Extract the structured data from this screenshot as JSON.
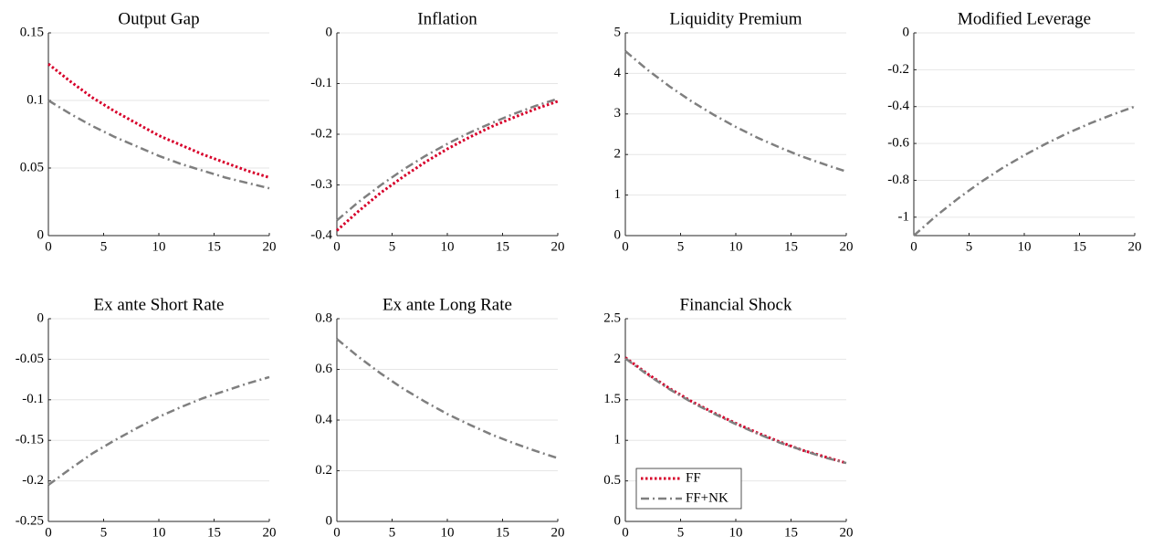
{
  "chart_data": [
    {
      "type": "line",
      "title": "Output Gap",
      "x": [
        0,
        2,
        4,
        6,
        8,
        10,
        12,
        14,
        16,
        18,
        20
      ],
      "xlim": [
        0,
        20
      ],
      "xticks": [
        0,
        5,
        10,
        15,
        20
      ],
      "ylim": [
        0,
        0.15
      ],
      "yticks": [
        0,
        0.05,
        0.1,
        0.15
      ],
      "grid": true,
      "series": [
        {
          "color": "#d7002a",
          "dash": "dotted",
          "values": [
            0.127,
            0.114,
            0.102,
            0.092,
            0.083,
            0.074,
            0.067,
            0.06,
            0.054,
            0.048,
            0.043
          ]
        },
        {
          "color": "#7f7f7f",
          "dash": "dashdot",
          "values": [
            0.1,
            0.09,
            0.081,
            0.073,
            0.066,
            0.059,
            0.053,
            0.048,
            0.043,
            0.039,
            0.035
          ]
        }
      ]
    },
    {
      "type": "line",
      "title": "Inflation",
      "x": [
        0,
        2,
        4,
        6,
        8,
        10,
        12,
        14,
        16,
        18,
        20
      ],
      "xlim": [
        0,
        20
      ],
      "xticks": [
        0,
        5,
        10,
        15,
        20
      ],
      "ylim": [
        -0.4,
        0
      ],
      "yticks": [
        -0.4,
        -0.3,
        -0.2,
        -0.1,
        0
      ],
      "grid": true,
      "series": [
        {
          "color": "#d7002a",
          "dash": "dotted",
          "values": [
            -0.39,
            -0.351,
            -0.315,
            -0.284,
            -0.255,
            -0.229,
            -0.206,
            -0.185,
            -0.167,
            -0.15,
            -0.135
          ]
        },
        {
          "color": "#7f7f7f",
          "dash": "dashdot",
          "values": [
            -0.37,
            -0.333,
            -0.3,
            -0.27,
            -0.243,
            -0.219,
            -0.197,
            -0.178,
            -0.16,
            -0.144,
            -0.13
          ]
        }
      ]
    },
    {
      "type": "line",
      "title": "Liquidity Premium",
      "x": [
        0,
        2,
        4,
        6,
        8,
        10,
        12,
        14,
        16,
        18,
        20
      ],
      "xlim": [
        0,
        20
      ],
      "xticks": [
        0,
        5,
        10,
        15,
        20
      ],
      "ylim": [
        0,
        5
      ],
      "yticks": [
        0,
        1,
        2,
        3,
        4,
        5
      ],
      "grid": true,
      "series": [
        {
          "color": "#7f7f7f",
          "dash": "dashdot",
          "values": [
            4.55,
            4.09,
            3.68,
            3.31,
            2.98,
            2.68,
            2.41,
            2.17,
            1.95,
            1.76,
            1.58
          ]
        }
      ]
    },
    {
      "type": "line",
      "title": "Modified Leverage",
      "x": [
        0,
        2,
        4,
        6,
        8,
        10,
        12,
        14,
        16,
        18,
        20
      ],
      "xlim": [
        0,
        20
      ],
      "xticks": [
        0,
        5,
        10,
        15,
        20
      ],
      "ylim": [
        -1.1,
        0
      ],
      "yticks": [
        -1,
        -0.8,
        -0.6,
        -0.4,
        -0.2,
        0
      ],
      "grid": true,
      "series": [
        {
          "color": "#7f7f7f",
          "dash": "dashdot",
          "values": [
            -1.1,
            -0.994,
            -0.899,
            -0.812,
            -0.734,
            -0.664,
            -0.6,
            -0.542,
            -0.49,
            -0.443,
            -0.4
          ]
        }
      ]
    },
    {
      "type": "line",
      "title": "Ex ante Short Rate",
      "x": [
        0,
        2,
        4,
        6,
        8,
        10,
        12,
        14,
        16,
        18,
        20
      ],
      "xlim": [
        0,
        20
      ],
      "xticks": [
        0,
        5,
        10,
        15,
        20
      ],
      "ylim": [
        -0.25,
        0
      ],
      "yticks": [
        -0.25,
        -0.2,
        -0.15,
        -0.1,
        -0.05,
        0
      ],
      "grid": true,
      "series": [
        {
          "color": "#7f7f7f",
          "dash": "dashdot",
          "values": [
            -0.205,
            -0.185,
            -0.166,
            -0.15,
            -0.135,
            -0.121,
            -0.109,
            -0.098,
            -0.089,
            -0.08,
            -0.072
          ]
        }
      ]
    },
    {
      "type": "line",
      "title": "Ex ante Long Rate",
      "x": [
        0,
        2,
        4,
        6,
        8,
        10,
        12,
        14,
        16,
        18,
        20
      ],
      "xlim": [
        0,
        20
      ],
      "xticks": [
        0,
        5,
        10,
        15,
        20
      ],
      "ylim": [
        0,
        0.8
      ],
      "yticks": [
        0,
        0.2,
        0.4,
        0.6,
        0.8
      ],
      "grid": true,
      "series": [
        {
          "color": "#7f7f7f",
          "dash": "dashdot",
          "values": [
            0.72,
            0.648,
            0.583,
            0.524,
            0.472,
            0.424,
            0.382,
            0.343,
            0.309,
            0.278,
            0.25
          ]
        }
      ]
    },
    {
      "type": "line",
      "title": "Financial Shock",
      "x": [
        0,
        2,
        4,
        6,
        8,
        10,
        12,
        14,
        16,
        18,
        20
      ],
      "xlim": [
        0,
        20
      ],
      "xticks": [
        0,
        5,
        10,
        15,
        20
      ],
      "ylim": [
        0,
        2.5
      ],
      "yticks": [
        0,
        0.5,
        1,
        1.5,
        2,
        2.5
      ],
      "grid": true,
      "legend": "lower left",
      "series": [
        {
          "name": "FF",
          "color": "#d7002a",
          "dash": "dotted",
          "values": [
            2.02,
            1.82,
            1.64,
            1.48,
            1.34,
            1.21,
            1.09,
            0.98,
            0.88,
            0.8,
            0.72
          ]
        },
        {
          "name": "FF+NK",
          "color": "#7f7f7f",
          "dash": "dashdot",
          "values": [
            2.01,
            1.81,
            1.63,
            1.47,
            1.33,
            1.2,
            1.08,
            0.97,
            0.88,
            0.79,
            0.72
          ]
        }
      ]
    }
  ]
}
